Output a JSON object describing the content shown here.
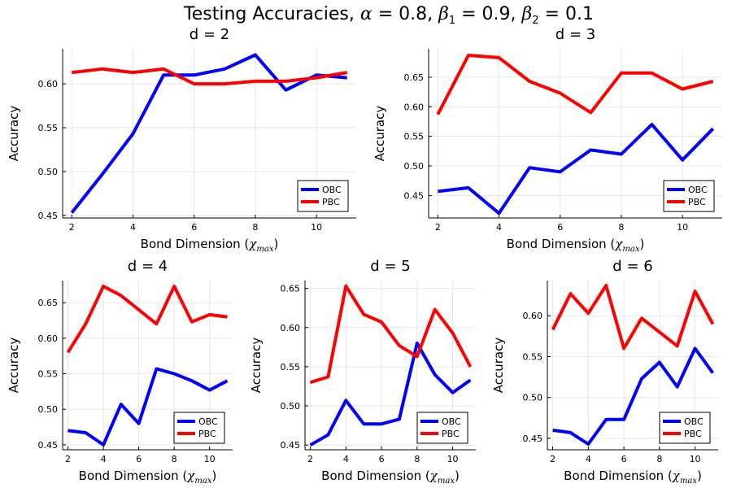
{
  "figure": {
    "title_prefix": "Testing Accuracies, ",
    "alpha_symbol": "α",
    "alpha_value": " = 0.8, ",
    "beta1_symbol": "β",
    "beta1_sub": "1",
    "beta1_value": " = 0.9, ",
    "beta2_symbol": "β",
    "beta2_sub": "2",
    "beta2_value": " = 0.1"
  },
  "colors": {
    "OBC": "#0000ff",
    "PBC": "#ff0000"
  },
  "chart_data": [
    {
      "type": "line",
      "title": "d = 2",
      "xlabel_text": "Bond Dimension ",
      "xlabel_math": "χ",
      "xlabel_sub": "max",
      "ylabel": "Accuracy",
      "x": [
        2,
        3,
        4,
        5,
        6,
        7,
        8,
        9,
        10,
        11
      ],
      "xlim": [
        1.7,
        11.3
      ],
      "ylim": [
        0.447,
        0.64
      ],
      "xticks": [
        2,
        4,
        6,
        8,
        10
      ],
      "yticks": [
        0.45,
        0.5,
        0.55,
        0.6
      ],
      "ytick_labels": [
        "0.45",
        "0.50",
        "0.55",
        "0.60"
      ],
      "grid": true,
      "legend": "bottom-right",
      "series": [
        {
          "name": "OBC",
          "values": [
            0.453,
            0.497,
            0.543,
            0.61,
            0.61,
            0.617,
            0.633,
            0.593,
            0.61,
            0.607
          ]
        },
        {
          "name": "PBC",
          "values": [
            0.613,
            0.617,
            0.613,
            0.617,
            0.6,
            0.6,
            0.603,
            0.603,
            0.607,
            0.613
          ]
        }
      ]
    },
    {
      "type": "line",
      "title": "d = 3",
      "xlabel_text": "Bond Dimension ",
      "xlabel_math": "χ",
      "xlabel_sub": "max",
      "ylabel": "Accuracy",
      "x": [
        2,
        3,
        4,
        5,
        6,
        7,
        8,
        9,
        10,
        11
      ],
      "xlim": [
        1.7,
        11.3
      ],
      "ylim": [
        0.412,
        0.698
      ],
      "xticks": [
        2,
        4,
        6,
        8,
        10
      ],
      "yticks": [
        0.45,
        0.5,
        0.55,
        0.6,
        0.65
      ],
      "ytick_labels": [
        "0.45",
        "0.50",
        "0.55",
        "0.60",
        "0.65"
      ],
      "grid": true,
      "legend": "bottom-right",
      "series": [
        {
          "name": "OBC",
          "values": [
            0.457,
            0.463,
            0.42,
            0.497,
            0.49,
            0.527,
            0.52,
            0.57,
            0.51,
            0.563
          ]
        },
        {
          "name": "PBC",
          "values": [
            0.587,
            0.687,
            0.683,
            0.643,
            0.623,
            0.59,
            0.657,
            0.657,
            0.63,
            0.643
          ]
        }
      ]
    },
    {
      "type": "line",
      "title": "d = 4",
      "xlabel_text": "Bond Dimension ",
      "xlabel_math": "χ",
      "xlabel_sub": "max",
      "ylabel": "Accuracy",
      "x": [
        2,
        3,
        4,
        5,
        6,
        7,
        8,
        9,
        10,
        11
      ],
      "xlim": [
        1.7,
        11.3
      ],
      "ylim": [
        0.443,
        0.681
      ],
      "xticks": [
        2,
        4,
        6,
        8,
        10
      ],
      "yticks": [
        0.45,
        0.5,
        0.55,
        0.6,
        0.65
      ],
      "ytick_labels": [
        "0.45",
        "0.50",
        "0.55",
        "0.60",
        "0.65"
      ],
      "grid": true,
      "legend": "bottom-right",
      "series": [
        {
          "name": "OBC",
          "values": [
            0.47,
            0.467,
            0.45,
            0.507,
            0.48,
            0.557,
            0.55,
            0.54,
            0.527,
            0.54
          ]
        },
        {
          "name": "PBC",
          "values": [
            0.58,
            0.62,
            0.673,
            0.66,
            0.64,
            0.62,
            0.673,
            0.623,
            0.633,
            0.63
          ]
        }
      ]
    },
    {
      "type": "line",
      "title": "d = 5",
      "xlabel_text": "Bond Dimension ",
      "xlabel_math": "χ",
      "xlabel_sub": "max",
      "ylabel": "Accuracy",
      "x": [
        2,
        3,
        4,
        5,
        6,
        7,
        8,
        9,
        10,
        11
      ],
      "xlim": [
        1.7,
        11.3
      ],
      "ylim": [
        0.444,
        0.66
      ],
      "xticks": [
        2,
        4,
        6,
        8,
        10
      ],
      "yticks": [
        0.45,
        0.5,
        0.55,
        0.6,
        0.65
      ],
      "ytick_labels": [
        "0.45",
        "0.50",
        "0.55",
        "0.60",
        "0.65"
      ],
      "grid": true,
      "legend": "bottom-right",
      "series": [
        {
          "name": "OBC",
          "values": [
            0.45,
            0.463,
            0.507,
            0.477,
            0.477,
            0.483,
            0.58,
            0.54,
            0.517,
            0.533
          ]
        },
        {
          "name": "PBC",
          "values": [
            0.53,
            0.537,
            0.653,
            0.617,
            0.607,
            0.577,
            0.563,
            0.623,
            0.593,
            0.55
          ]
        }
      ]
    },
    {
      "type": "line",
      "title": "d = 6",
      "xlabel_text": "Bond Dimension ",
      "xlabel_math": "χ",
      "xlabel_sub": "max",
      "ylabel": "Accuracy",
      "x": [
        2,
        3,
        4,
        5,
        6,
        7,
        8,
        9,
        10,
        11
      ],
      "xlim": [
        1.7,
        11.3
      ],
      "ylim": [
        0.436,
        0.643
      ],
      "xticks": [
        2,
        4,
        6,
        8,
        10
      ],
      "yticks": [
        0.45,
        0.5,
        0.55,
        0.6
      ],
      "ytick_labels": [
        "0.45",
        "0.50",
        "0.55",
        "0.60"
      ],
      "grid": true,
      "legend": "bottom-right",
      "series": [
        {
          "name": "OBC",
          "values": [
            0.46,
            0.457,
            0.443,
            0.473,
            0.473,
            0.523,
            0.543,
            0.513,
            0.56,
            0.53
          ]
        },
        {
          "name": "PBC",
          "values": [
            0.583,
            0.627,
            0.603,
            0.637,
            0.56,
            0.597,
            0.58,
            0.563,
            0.63,
            0.59
          ]
        }
      ]
    }
  ]
}
